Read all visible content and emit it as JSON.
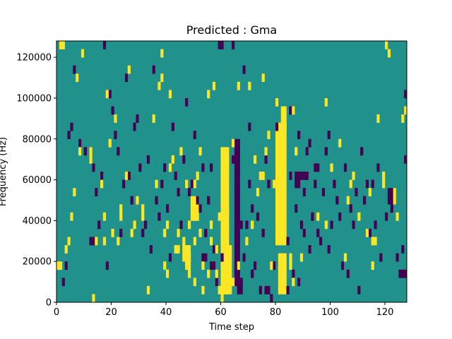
{
  "colors": {
    "background": "#21918c",
    "low": "#440154",
    "high": "#fde725",
    "frame": "#000000"
  },
  "chart_data": {
    "type": "heatmap",
    "title": "Predicted : Gma",
    "xlabel": "Time step",
    "ylabel": "Frequency (Hz)",
    "xlim": [
      0,
      128
    ],
    "ylim": [
      0,
      128000
    ],
    "xticks": [
      0,
      20,
      40,
      60,
      80,
      100,
      120
    ],
    "yticks": [
      0,
      20000,
      40000,
      60000,
      80000,
      100000,
      120000
    ],
    "ytick_labels": [
      "0",
      "20000",
      "40000",
      "60000",
      "80000",
      "100000",
      "120000"
    ],
    "cell_size": {
      "time_step": 1,
      "frequency_hz": 4000
    },
    "background_value": 0,
    "yellow_regions": [
      {
        "t": [
          60,
          63
        ],
        "f": [
          4000,
          76000
        ]
      },
      {
        "t": [
          61,
          64
        ],
        "f": [
          4000,
          28000
        ]
      },
      {
        "t": [
          80,
          84
        ],
        "f": [
          28000,
          88000
        ]
      },
      {
        "t": [
          81,
          84
        ],
        "f": [
          4000,
          24000
        ]
      },
      {
        "t": [
          82,
          84
        ],
        "f": [
          84000,
          96000
        ]
      },
      {
        "t": [
          49,
          52
        ],
        "f": [
          40000,
          52000
        ]
      },
      {
        "t": [
          47,
          49
        ],
        "f": [
          16000,
          24000
        ]
      },
      {
        "t": [
          46,
          49
        ],
        "f": [
          20000,
          28000
        ]
      }
    ],
    "purple_regions": [
      {
        "t": [
          65,
          67
        ],
        "f": [
          8000,
          80000
        ]
      },
      {
        "t": [
          66,
          68
        ],
        "f": [
          4000,
          12000
        ]
      },
      {
        "t": [
          87,
          89
        ],
        "f": [
          56000,
          64000
        ]
      },
      {
        "t": [
          89,
          92
        ],
        "f": [
          60000,
          64000
        ]
      },
      {
        "t": [
          94,
          96
        ],
        "f": [
          64000,
          68000
        ]
      },
      {
        "t": [
          121,
          123
        ],
        "f": [
          48000,
          56000
        ]
      },
      {
        "t": [
          125,
          128
        ],
        "f": [
          12000,
          16000
        ]
      },
      {
        "t": [
          127,
          128
        ],
        "f": [
          68000,
          72000
        ]
      },
      {
        "t": [
          53,
          55
        ],
        "f": [
          20000,
          24000
        ]
      },
      {
        "t": [
          76,
          78
        ],
        "f": [
          4000,
          8000
        ]
      }
    ],
    "yellow_cells": [
      [
        1,
        124000
      ],
      [
        2,
        124000
      ],
      [
        0,
        16000
      ],
      [
        1,
        16000
      ],
      [
        3,
        24000
      ],
      [
        4,
        28000
      ],
      [
        5,
        40000
      ],
      [
        6,
        52000
      ],
      [
        7,
        108000
      ],
      [
        8,
        72000
      ],
      [
        9,
        120000
      ],
      [
        12,
        68000
      ],
      [
        12,
        72000
      ],
      [
        13,
        0
      ],
      [
        14,
        28000
      ],
      [
        16,
        56000
      ],
      [
        17,
        40000
      ],
      [
        17,
        28000
      ],
      [
        18,
        100000
      ],
      [
        19,
        76000
      ],
      [
        20,
        32000
      ],
      [
        21,
        88000
      ],
      [
        22,
        28000
      ],
      [
        23,
        40000
      ],
      [
        23,
        44000
      ],
      [
        25,
        60000
      ],
      [
        26,
        112000
      ],
      [
        27,
        32000
      ],
      [
        28,
        36000
      ],
      [
        29,
        48000
      ],
      [
        31,
        40000
      ],
      [
        31,
        44000
      ],
      [
        33,
        4000
      ],
      [
        35,
        88000
      ],
      [
        36,
        56000
      ],
      [
        37,
        104000
      ],
      [
        38,
        108000
      ],
      [
        38,
        120000
      ],
      [
        39,
        16000
      ],
      [
        39,
        32000
      ],
      [
        40,
        12000
      ],
      [
        40,
        36000
      ],
      [
        41,
        64000
      ],
      [
        41,
        100000
      ],
      [
        42,
        68000
      ],
      [
        43,
        24000
      ],
      [
        44,
        32000
      ],
      [
        44,
        24000
      ],
      [
        45,
        72000
      ],
      [
        46,
        28000
      ],
      [
        47,
        56000
      ],
      [
        48,
        12000
      ],
      [
        48,
        36000
      ],
      [
        50,
        8000
      ],
      [
        50,
        28000
      ],
      [
        50,
        40000
      ],
      [
        50,
        56000
      ],
      [
        51,
        60000
      ],
      [
        52,
        72000
      ],
      [
        52,
        32000
      ],
      [
        53,
        16000
      ],
      [
        53,
        4000
      ],
      [
        55,
        100000
      ],
      [
        55,
        12000
      ],
      [
        56,
        28000
      ],
      [
        56,
        36000
      ],
      [
        57,
        104000
      ],
      [
        58,
        12000
      ],
      [
        58,
        24000
      ],
      [
        59,
        40000
      ],
      [
        59,
        4000
      ],
      [
        60,
        0
      ],
      [
        61,
        36000
      ],
      [
        61,
        28000
      ],
      [
        64,
        76000
      ],
      [
        64,
        8000
      ],
      [
        66,
        104000
      ],
      [
        66,
        16000
      ],
      [
        69,
        28000
      ],
      [
        70,
        104000
      ],
      [
        71,
        36000
      ],
      [
        72,
        68000
      ],
      [
        73,
        52000
      ],
      [
        74,
        60000
      ],
      [
        75,
        108000
      ],
      [
        75,
        60000
      ],
      [
        76,
        72000
      ],
      [
        77,
        80000
      ],
      [
        78,
        16000
      ],
      [
        79,
        56000
      ],
      [
        80,
        96000
      ],
      [
        85,
        16000
      ],
      [
        85,
        20000
      ],
      [
        86,
        92000
      ],
      [
        86,
        8000
      ],
      [
        87,
        72000
      ],
      [
        89,
        20000
      ],
      [
        95,
        40000
      ],
      [
        98,
        96000
      ],
      [
        98,
        36000
      ],
      [
        100,
        64000
      ],
      [
        103,
        76000
      ],
      [
        105,
        20000
      ],
      [
        106,
        48000
      ],
      [
        107,
        56000
      ],
      [
        108,
        60000
      ],
      [
        110,
        40000
      ],
      [
        113,
        32000
      ],
      [
        114,
        52000
      ],
      [
        115,
        16000
      ],
      [
        115,
        28000
      ],
      [
        116,
        28000
      ],
      [
        117,
        88000
      ],
      [
        119,
        56000
      ],
      [
        119,
        60000
      ],
      [
        120,
        124000
      ],
      [
        121,
        120000
      ],
      [
        123,
        52000
      ],
      [
        123,
        48000
      ],
      [
        124,
        40000
      ],
      [
        126,
        88000
      ],
      [
        127,
        92000
      ]
    ],
    "purple_cells": [
      [
        2,
        8000
      ],
      [
        3,
        16000
      ],
      [
        4,
        80000
      ],
      [
        5,
        84000
      ],
      [
        6,
        112000
      ],
      [
        8,
        76000
      ],
      [
        10,
        72000
      ],
      [
        12,
        28000
      ],
      [
        13,
        64000
      ],
      [
        13,
        28000
      ],
      [
        14,
        52000
      ],
      [
        15,
        36000
      ],
      [
        16,
        60000
      ],
      [
        17,
        124000
      ],
      [
        18,
        16000
      ],
      [
        19,
        100000
      ],
      [
        20,
        92000
      ],
      [
        21,
        80000
      ],
      [
        22,
        72000
      ],
      [
        23,
        32000
      ],
      [
        24,
        56000
      ],
      [
        25,
        108000
      ],
      [
        26,
        60000
      ],
      [
        27,
        48000
      ],
      [
        28,
        84000
      ],
      [
        29,
        88000
      ],
      [
        30,
        64000
      ],
      [
        31,
        32000
      ],
      [
        32,
        36000
      ],
      [
        33,
        68000
      ],
      [
        34,
        24000
      ],
      [
        35,
        112000
      ],
      [
        36,
        48000
      ],
      [
        37,
        40000
      ],
      [
        38,
        56000
      ],
      [
        39,
        64000
      ],
      [
        40,
        44000
      ],
      [
        41,
        20000
      ],
      [
        42,
        84000
      ],
      [
        43,
        60000
      ],
      [
        44,
        52000
      ],
      [
        45,
        36000
      ],
      [
        46,
        68000
      ],
      [
        47,
        96000
      ],
      [
        48,
        52000
      ],
      [
        49,
        56000
      ],
      [
        50,
        80000
      ],
      [
        51,
        48000
      ],
      [
        52,
        44000
      ],
      [
        53,
        64000
      ],
      [
        54,
        32000
      ],
      [
        55,
        48000
      ],
      [
        56,
        64000
      ],
      [
        56,
        16000
      ],
      [
        57,
        16000
      ],
      [
        57,
        24000
      ],
      [
        58,
        8000
      ],
      [
        59,
        124000
      ],
      [
        60,
        124000
      ],
      [
        60,
        20000
      ],
      [
        64,
        124000
      ],
      [
        64,
        68000
      ],
      [
        67,
        36000
      ],
      [
        68,
        112000
      ],
      [
        68,
        20000
      ],
      [
        69,
        36000
      ],
      [
        70,
        56000
      ],
      [
        70,
        84000
      ],
      [
        71,
        12000
      ],
      [
        71,
        44000
      ],
      [
        72,
        16000
      ],
      [
        73,
        40000
      ],
      [
        74,
        4000
      ],
      [
        75,
        32000
      ],
      [
        76,
        68000
      ],
      [
        77,
        56000
      ],
      [
        78,
        0
      ],
      [
        79,
        16000
      ],
      [
        80,
        84000
      ],
      [
        84,
        4000
      ],
      [
        84,
        28000
      ],
      [
        85,
        92000
      ],
      [
        85,
        60000
      ],
      [
        86,
        12000
      ],
      [
        87,
        44000
      ],
      [
        88,
        80000
      ],
      [
        88,
        8000
      ],
      [
        89,
        36000
      ],
      [
        90,
        32000
      ],
      [
        90,
        52000
      ],
      [
        91,
        72000
      ],
      [
        92,
        24000
      ],
      [
        92,
        76000
      ],
      [
        93,
        40000
      ],
      [
        94,
        56000
      ],
      [
        95,
        32000
      ],
      [
        96,
        28000
      ],
      [
        97,
        52000
      ],
      [
        98,
        72000
      ],
      [
        99,
        24000
      ],
      [
        99,
        80000
      ],
      [
        100,
        36000
      ],
      [
        101,
        56000
      ],
      [
        102,
        48000
      ],
      [
        103,
        40000
      ],
      [
        104,
        16000
      ],
      [
        105,
        64000
      ],
      [
        106,
        12000
      ],
      [
        107,
        44000
      ],
      [
        108,
        36000
      ],
      [
        109,
        52000
      ],
      [
        110,
        4000
      ],
      [
        111,
        72000
      ],
      [
        112,
        48000
      ],
      [
        113,
        56000
      ],
      [
        114,
        32000
      ],
      [
        115,
        56000
      ],
      [
        116,
        36000
      ],
      [
        117,
        64000
      ],
      [
        118,
        20000
      ],
      [
        120,
        40000
      ],
      [
        122,
        44000
      ],
      [
        124,
        20000
      ],
      [
        126,
        24000
      ],
      [
        127,
        100000
      ]
    ]
  }
}
